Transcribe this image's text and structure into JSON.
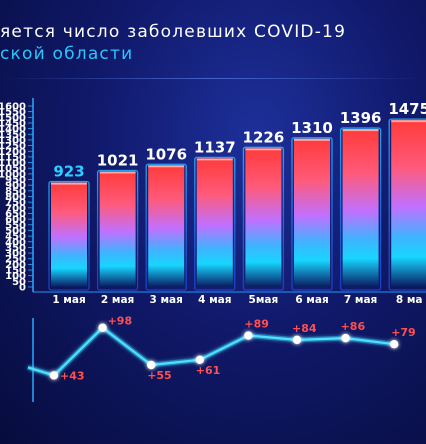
{
  "header": {
    "title_line1": "яется число заболевших COVID-19",
    "title_line2": "ской области"
  },
  "colors": {
    "bar_top": "#ff3b3b",
    "bar_bottom": "#17d6ff",
    "accent": "#29c6ff",
    "increase_label": "#ff4f4f"
  },
  "chart_data": [
    {
      "type": "bar",
      "title": "",
      "xlabel": "",
      "ylabel": "",
      "ylim": [
        0,
        1600
      ],
      "yticks": [
        "0",
        "50",
        "100",
        "150",
        "200",
        "250",
        "300",
        "350",
        "400",
        "450",
        "500",
        "550",
        "600",
        "650",
        "700",
        "750",
        "800",
        "850",
        "900",
        "950",
        "1000",
        "1050",
        "1100",
        "1150",
        "1200",
        "1250",
        "1300",
        "1350",
        "1400",
        "1450",
        "1500",
        "1550",
        "1600"
      ],
      "categories": [
        "1 мая",
        "2 мая",
        "3 мая",
        "4 мая",
        "5мая",
        "6 мая",
        "7 мая",
        "8 ма"
      ],
      "values": [
        923,
        1021,
        1076,
        1137,
        1226,
        1310,
        1396,
        1475
      ],
      "value_labels": [
        "923",
        "1021",
        "1076",
        "1137",
        "1226",
        "1310",
        "1396",
        "1475"
      ],
      "grid": false,
      "legend": "none"
    },
    {
      "type": "line",
      "title": "",
      "xlabel": "",
      "ylabel": "",
      "x": [
        "1 мая",
        "2 мая",
        "3 мая",
        "4 мая",
        "5мая",
        "6 мая",
        "7 мая",
        "8 ма"
      ],
      "values": [
        43,
        98,
        55,
        61,
        89,
        84,
        86,
        79
      ],
      "labels": [
        "+43",
        "+98",
        "+55",
        "+61",
        "+89",
        "+84",
        "+86",
        "+79"
      ],
      "grid": false,
      "legend": "none"
    }
  ]
}
